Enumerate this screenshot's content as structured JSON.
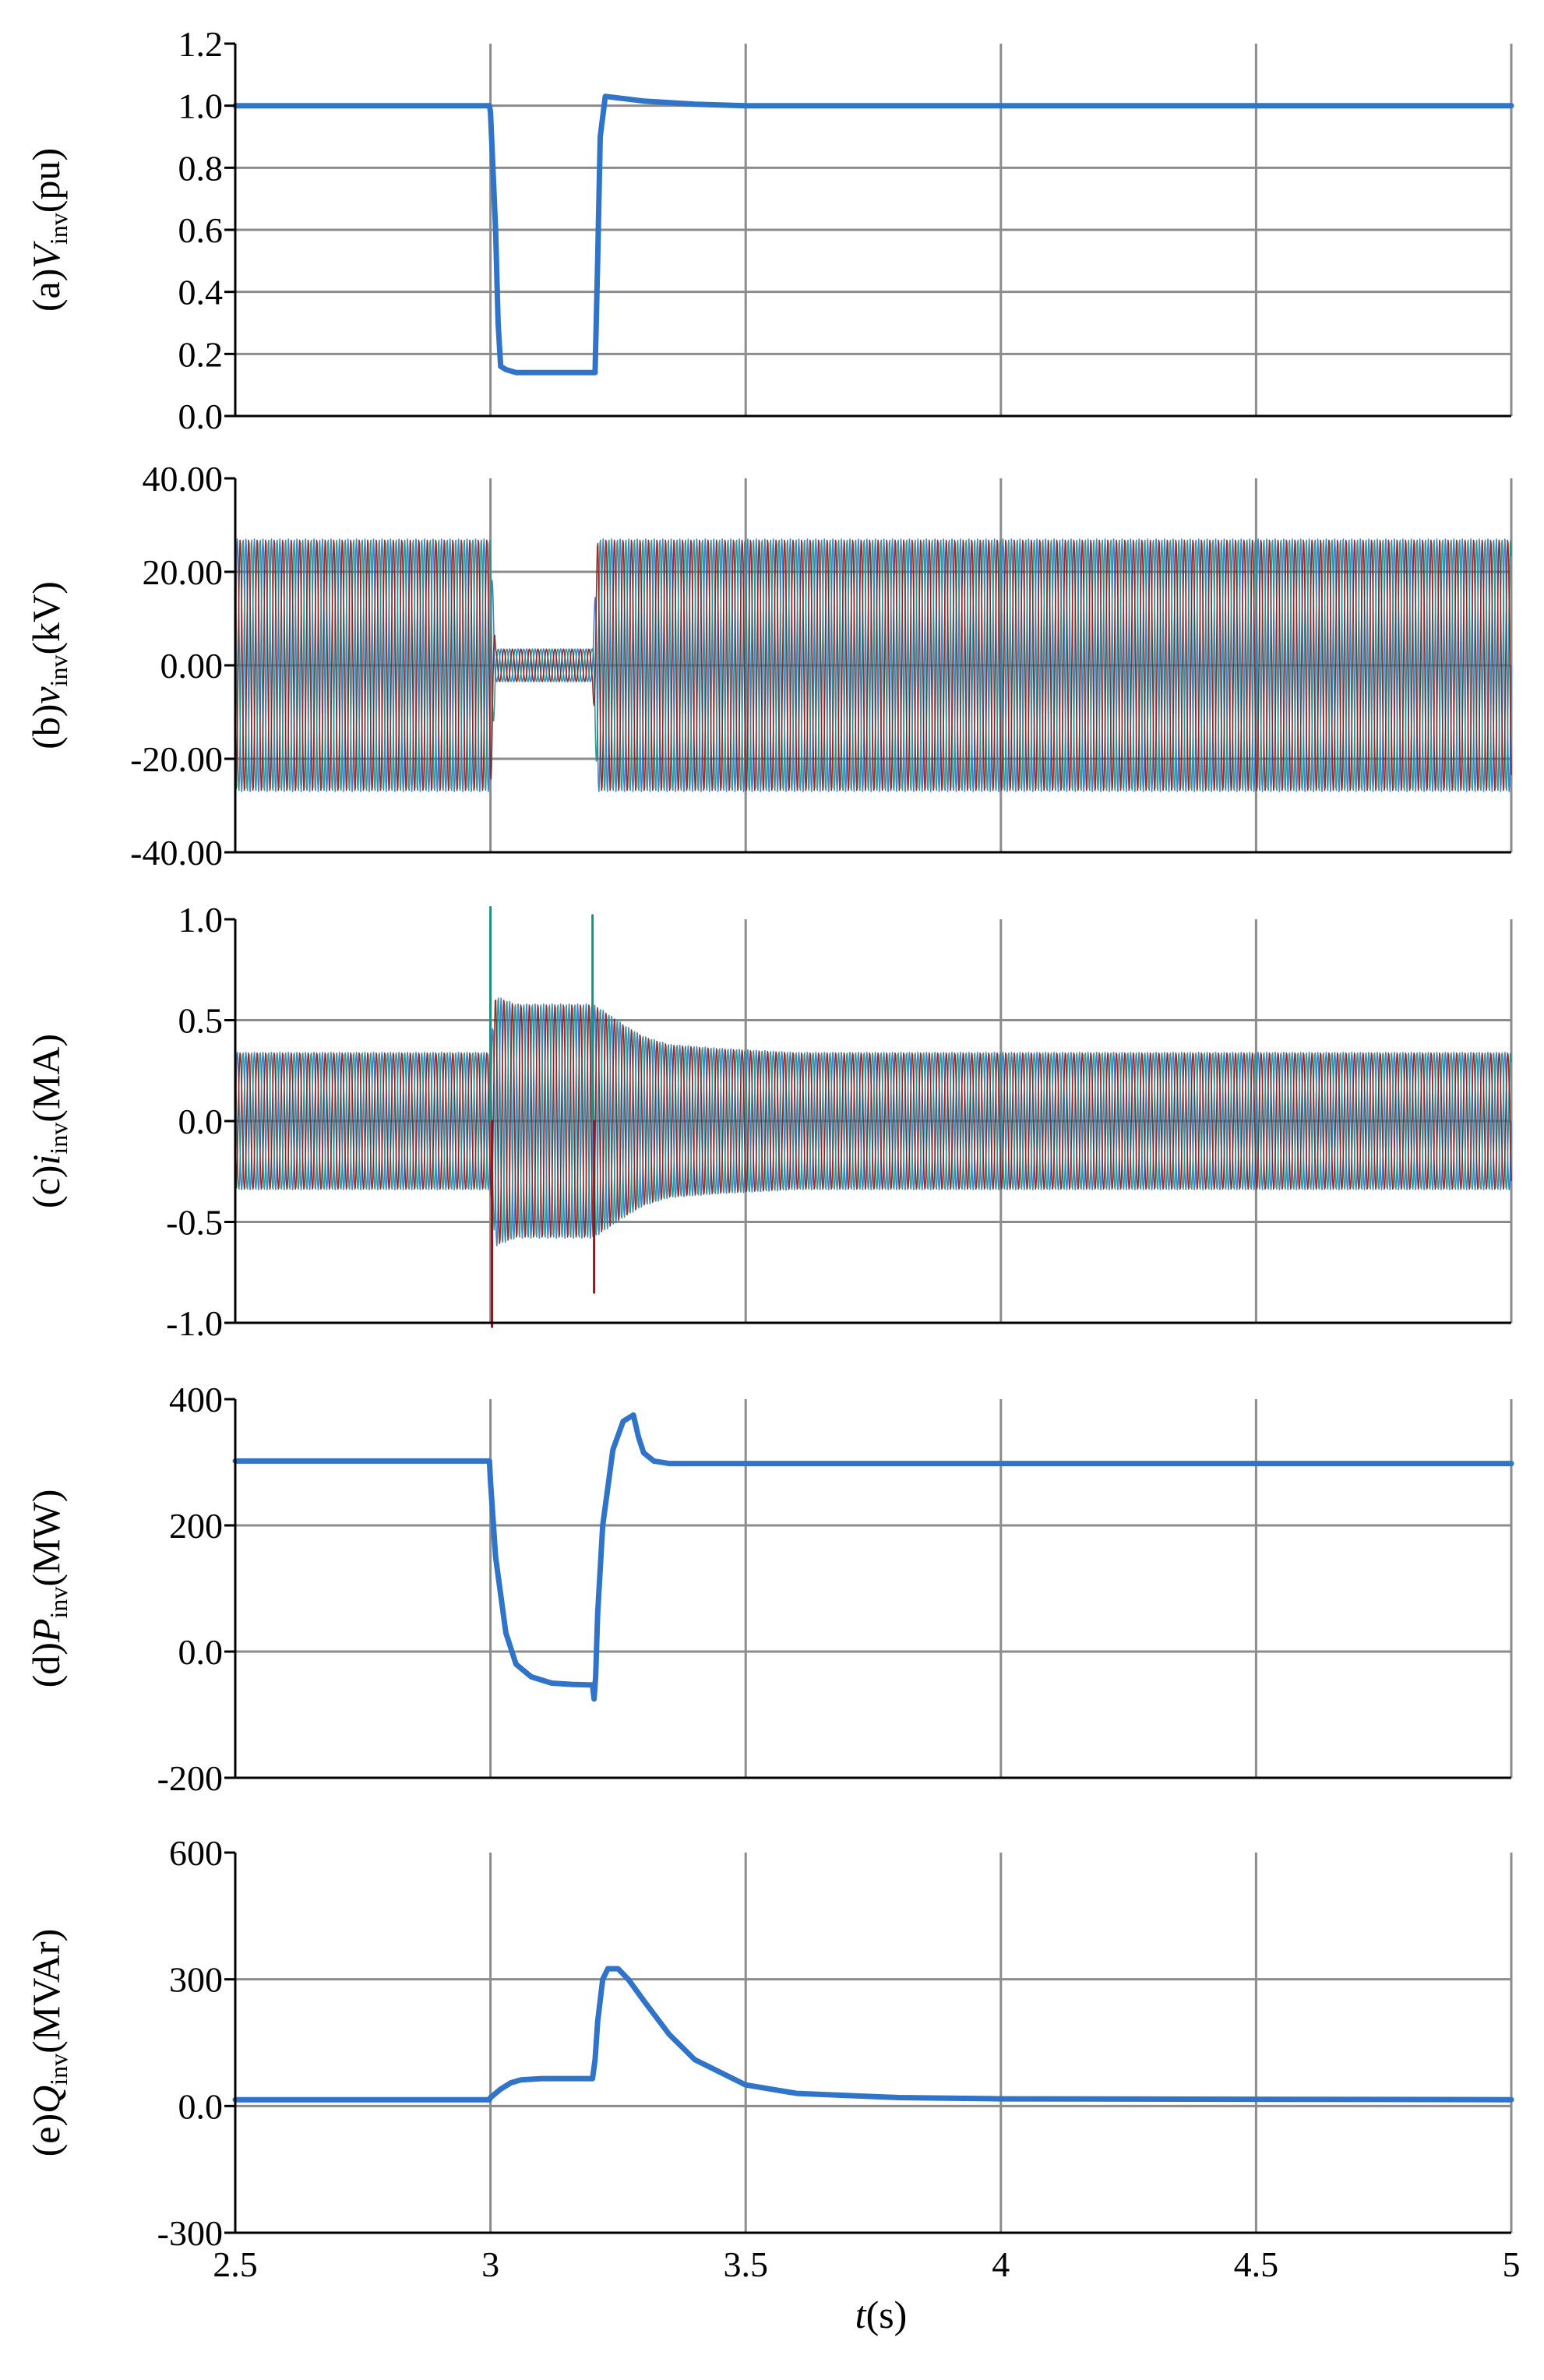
{
  "chart_data": [
    {
      "id": "a",
      "type": "line",
      "ylabel_parts": {
        "prefix": "(a)",
        "symbol": "V",
        "sub": "inv",
        "unit": "(pu)"
      },
      "yticks": [
        "0.0",
        "0.2",
        "0.4",
        "0.6",
        "0.8",
        "1.0",
        "1.2"
      ],
      "ylim": [
        0,
        1.2
      ],
      "xlim": [
        2.5,
        5
      ],
      "series": [
        {
          "color": "#2f74c8",
          "x": [
            2.5,
            2.998,
            3.0,
            3.01,
            3.015,
            3.02,
            3.03,
            3.05,
            3.1,
            3.15,
            3.2,
            3.205,
            3.21,
            3.215,
            3.225,
            3.25,
            3.3,
            3.4,
            3.5,
            5.0
          ],
          "y": [
            1.0,
            1.0,
            0.98,
            0.6,
            0.3,
            0.16,
            0.15,
            0.14,
            0.14,
            0.14,
            0.14,
            0.14,
            0.5,
            0.9,
            1.03,
            1.025,
            1.015,
            1.005,
            1.0,
            1.0
          ]
        }
      ]
    },
    {
      "id": "b",
      "type": "line",
      "ylabel_parts": {
        "prefix": "(b)",
        "symbol": "v",
        "sub": "inv",
        "unit": "(kV)"
      },
      "yticks": [
        "-40.00",
        "-20.00",
        "0.00",
        "20.00",
        "40.00"
      ],
      "ylim": [
        -40,
        40
      ],
      "xlim": [
        2.5,
        5
      ],
      "envelope": {
        "x": [
          2.5,
          3.0,
          3.01,
          3.2,
          3.21,
          5.0
        ],
        "amp": [
          27,
          27,
          3.5,
          3.5,
          27,
          27
        ]
      },
      "series": [
        {
          "color": "#2f74c8"
        },
        {
          "color": "#1f8f84"
        },
        {
          "color": "#8b1a1a"
        }
      ]
    },
    {
      "id": "c",
      "type": "line",
      "ylabel_parts": {
        "prefix": "(c)",
        "symbol": "i",
        "sub": "inv",
        "unit": "(MA)"
      },
      "yticks": [
        "-1.0",
        "-0.5",
        "0.0",
        "0.5",
        "1.0"
      ],
      "ylim": [
        -1,
        1
      ],
      "xlim": [
        2.5,
        5
      ],
      "envelope": {
        "x": [
          2.5,
          3.0,
          3.01,
          3.05,
          3.1,
          3.2,
          3.22,
          3.26,
          3.3,
          3.35,
          3.45,
          3.6,
          5.0
        ],
        "amp": [
          0.34,
          0.34,
          0.62,
          0.58,
          0.58,
          0.58,
          0.55,
          0.48,
          0.42,
          0.38,
          0.36,
          0.34,
          0.34
        ]
      },
      "spikes": [
        {
          "x": 3.0,
          "y": [
            1.06,
            -1.02
          ]
        },
        {
          "x": 3.2,
          "y": [
            1.02,
            -0.85
          ]
        }
      ],
      "series": [
        {
          "color": "#2f74c8"
        },
        {
          "color": "#1f8f84"
        },
        {
          "color": "#8b1a1a"
        }
      ]
    },
    {
      "id": "d",
      "type": "line",
      "ylabel_parts": {
        "prefix": "(d)",
        "symbol": "P",
        "sub": "inv",
        "unit": "(MW)"
      },
      "yticks": [
        "-200",
        "0.0",
        "200",
        "400"
      ],
      "ylim": [
        -200,
        400
      ],
      "xlim": [
        2.5,
        5
      ],
      "series": [
        {
          "color": "#2f74c8",
          "x": [
            2.5,
            2.998,
            3.0,
            3.01,
            3.03,
            3.05,
            3.08,
            3.12,
            3.16,
            3.2,
            3.203,
            3.206,
            3.21,
            3.22,
            3.24,
            3.26,
            3.28,
            3.29,
            3.3,
            3.32,
            3.35,
            3.4,
            5.0
          ],
          "y": [
            302,
            302,
            270,
            150,
            30,
            -20,
            -40,
            -50,
            -52,
            -53,
            -75,
            -40,
            60,
            200,
            320,
            365,
            375,
            340,
            315,
            302,
            298,
            298,
            298
          ]
        }
      ]
    },
    {
      "id": "e",
      "type": "line",
      "ylabel_parts": {
        "prefix": "(e)",
        "symbol": "Q",
        "sub": "inv",
        "unit": "(MVAr)"
      },
      "yticks": [
        "-300",
        "0.0",
        "300",
        "600"
      ],
      "ylim": [
        -300,
        600
      ],
      "xlim": [
        2.5,
        5
      ],
      "series": [
        {
          "color": "#2f74c8",
          "x": [
            2.5,
            2.998,
            3.0,
            3.02,
            3.04,
            3.06,
            3.1,
            3.15,
            3.2,
            3.205,
            3.21,
            3.22,
            3.23,
            3.25,
            3.27,
            3.3,
            3.35,
            3.4,
            3.5,
            3.6,
            3.8,
            4.0,
            5.0
          ],
          "y": [
            15,
            15,
            20,
            40,
            55,
            62,
            65,
            65,
            65,
            110,
            200,
            300,
            325,
            325,
            300,
            250,
            170,
            110,
            50,
            30,
            20,
            17,
            15
          ]
        }
      ]
    }
  ],
  "xaxis": {
    "ticks": [
      "2.5",
      "3",
      "3.5",
      "4",
      "4.5",
      "5"
    ],
    "label_symbol": "t",
    "label_unit": "(s)"
  }
}
